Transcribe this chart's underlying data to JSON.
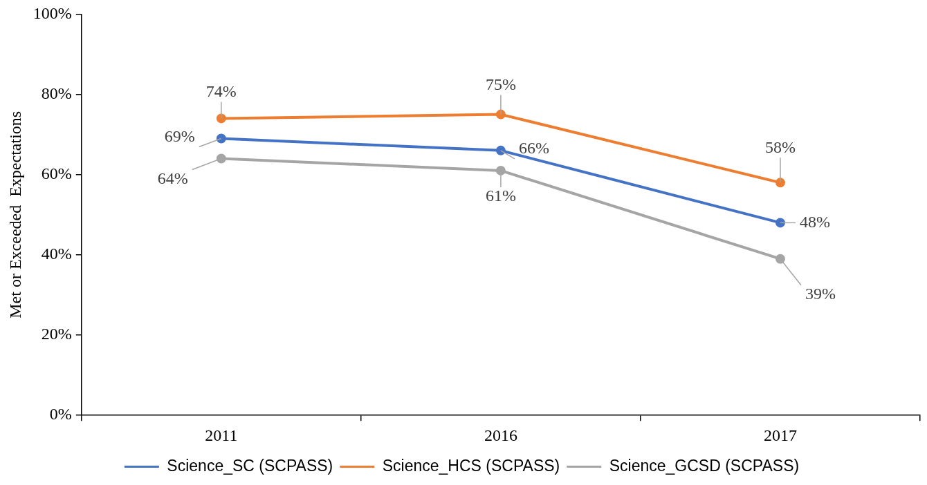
{
  "chart_data": {
    "type": "line",
    "ylabel": "Met or Exceeded  Expectations",
    "categories": [
      "2011",
      "2016",
      "2017"
    ],
    "series": [
      {
        "name": "Science_SC (SCPASS)",
        "color": "#4472c4",
        "values": [
          69,
          66,
          48
        ],
        "value_labels": [
          "69%",
          "66%",
          "48%"
        ]
      },
      {
        "name": "Science_HCS (SCPASS)",
        "color": "#ed7d31",
        "values": [
          74,
          75,
          58
        ],
        "value_labels": [
          "74%",
          "75%",
          "58%"
        ]
      },
      {
        "name": "Science_GCSD (SCPASS)",
        "color": "#a5a5a5",
        "values": [
          64,
          61,
          39
        ],
        "value_labels": [
          "64%",
          "61%",
          "39%"
        ]
      }
    ],
    "ylim": [
      0,
      100
    ],
    "yticks": [
      {
        "value": 0,
        "label": "0%"
      },
      {
        "value": 20,
        "label": "20%"
      },
      {
        "value": 40,
        "label": "40%"
      },
      {
        "value": 60,
        "label": "60%"
      },
      {
        "value": 80,
        "label": "80%"
      },
      {
        "value": 100,
        "label": "100%"
      }
    ],
    "grid": false,
    "legend": "bottom",
    "marker": "circle",
    "line_style": "solid"
  }
}
